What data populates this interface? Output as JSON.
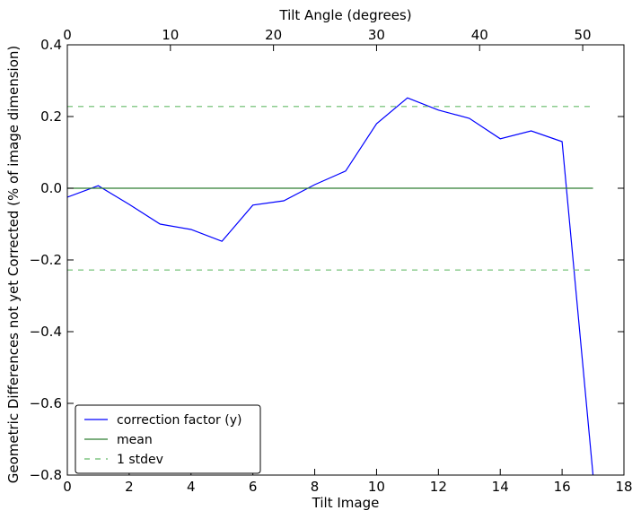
{
  "chart_data": {
    "type": "line",
    "title": "",
    "xlabel": "Tilt Image",
    "ylabel": "Geometric Differences not yet Corrected (% of image dimension)",
    "x2label": "Tilt Angle (degrees)",
    "xlim": [
      0,
      18
    ],
    "ylim": [
      -0.8,
      0.4
    ],
    "x2lim": [
      0,
      54
    ],
    "xticks": [
      0,
      2,
      4,
      6,
      8,
      10,
      12,
      14,
      16,
      18
    ],
    "xtick_labels": [
      "0",
      "2",
      "4",
      "6",
      "8",
      "10",
      "12",
      "14",
      "16",
      "18"
    ],
    "x2ticks": [
      0,
      10,
      20,
      30,
      40,
      50
    ],
    "x2tick_labels": [
      "0",
      "10",
      "20",
      "30",
      "40",
      "50"
    ],
    "yticks": [
      -0.8,
      -0.6,
      -0.4,
      -0.2,
      0.0,
      0.2,
      0.4
    ],
    "ytick_labels": [
      "−0.8",
      "−0.6",
      "−0.4",
      "−0.2",
      "0.0",
      "0.2",
      "0.4"
    ],
    "grid": false,
    "legend_position": "bottom-left",
    "series": [
      {
        "name": "correction factor (y)",
        "style": "solid",
        "color": "#0000ff",
        "x": [
          0,
          1,
          2,
          3,
          4,
          5,
          6,
          7,
          8,
          9,
          10,
          11,
          12,
          13,
          14,
          15,
          16,
          17
        ],
        "y": [
          -0.025,
          0.007,
          -0.045,
          -0.1,
          -0.115,
          -0.148,
          -0.047,
          -0.035,
          0.01,
          0.048,
          0.18,
          0.252,
          0.218,
          0.195,
          0.138,
          0.16,
          0.13,
          -0.8
        ]
      },
      {
        "name": "mean",
        "style": "solid",
        "color": "#2e7d32",
        "x": [
          0,
          17
        ],
        "y": [
          0.0,
          0.0
        ]
      },
      {
        "name": "1 stdev",
        "style": "dashed",
        "color": "#66bb6a",
        "x": [
          0,
          17
        ],
        "y": [
          0.228,
          0.228
        ]
      },
      {
        "name": "1 stdev",
        "style": "dashed",
        "color": "#66bb6a",
        "x": [
          0,
          17
        ],
        "y": [
          -0.228,
          -0.228
        ],
        "legend": false
      }
    ]
  }
}
